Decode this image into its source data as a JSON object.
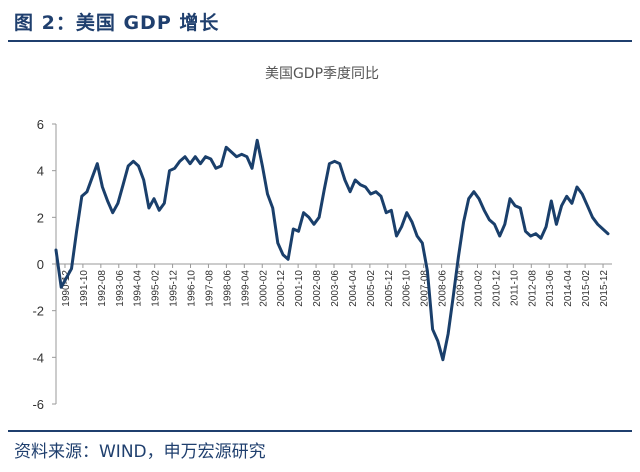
{
  "figure_label": "图 2：美国 GDP 增长",
  "source_text": "资料来源：WIND，申万宏源研究",
  "colors": {
    "accent": "#1f3f6e",
    "series": "#1a3f6b"
  },
  "chart_data": {
    "type": "line",
    "title": "美国GDP季度同比",
    "xlabel": "",
    "ylabel": "",
    "ylim": [
      -6,
      6
    ],
    "yticks": [
      6,
      4,
      2,
      0,
      -2,
      -4,
      -6
    ],
    "grid": false,
    "legend": "none",
    "xtick_labels": [
      "1990-12",
      "1991-10",
      "1992-08",
      "1993-06",
      "1994-04",
      "1995-02",
      "1995-12",
      "1996-10",
      "1997-08",
      "1998-06",
      "1999-04",
      "2000-02",
      "2000-12",
      "2001-10",
      "2002-08",
      "2003-06",
      "2004-04",
      "2005-02",
      "2005-12",
      "2006-10",
      "2007-08",
      "2008-06",
      "2009-04",
      "2010-02",
      "2010-12",
      "2011-10",
      "2012-08",
      "2013-06",
      "2014-04",
      "2015-02",
      "2015-12"
    ],
    "series": [
      {
        "values": [
          0.6,
          -1.0,
          -0.6,
          -0.2,
          1.4,
          2.9,
          3.1,
          3.7,
          4.3,
          3.3,
          2.7,
          2.2,
          2.6,
          3.4,
          4.2,
          4.4,
          4.2,
          3.6,
          2.4,
          2.8,
          2.3,
          2.6,
          4.0,
          4.1,
          4.4,
          4.6,
          4.3,
          4.6,
          4.3,
          4.6,
          4.5,
          4.1,
          4.2,
          5.0,
          4.8,
          4.6,
          4.7,
          4.6,
          4.1,
          5.3,
          4.2,
          3.0,
          2.4,
          0.9,
          0.4,
          0.2,
          1.5,
          1.4,
          2.2,
          2.0,
          1.7,
          2.0,
          3.2,
          4.3,
          4.4,
          4.3,
          3.6,
          3.1,
          3.6,
          3.4,
          3.3,
          3.0,
          3.1,
          2.9,
          2.2,
          2.3,
          1.2,
          1.6,
          2.2,
          1.8,
          1.2,
          0.9,
          -0.3,
          -2.8,
          -3.3,
          -4.1,
          -3.0,
          -1.4,
          0.3,
          1.8,
          2.8,
          3.1,
          2.8,
          2.3,
          1.9,
          1.7,
          1.2,
          1.7,
          2.8,
          2.5,
          2.4,
          1.4,
          1.2,
          1.3,
          1.1,
          1.6,
          2.7,
          1.7,
          2.5,
          2.9,
          2.6,
          3.3,
          3.0,
          2.5,
          2.0,
          1.7,
          1.5,
          1.3
        ]
      }
    ]
  }
}
